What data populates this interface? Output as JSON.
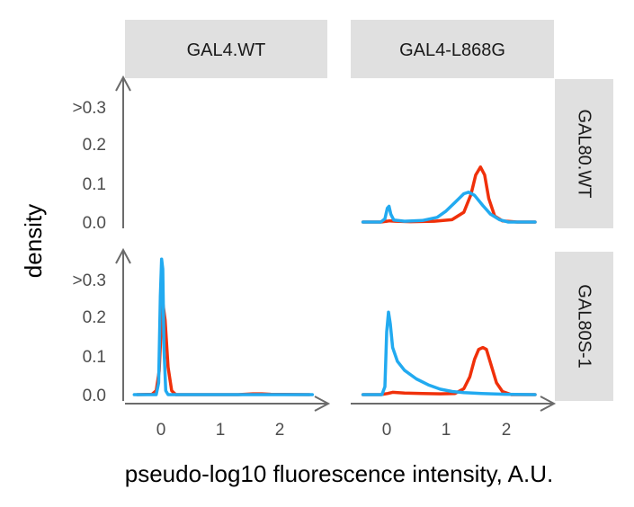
{
  "chart_data": {
    "type": "line",
    "subtype": "faceted density",
    "ylabel": "density",
    "xlabel": "pseudo-log10 fluorescence intensity, A.U.",
    "xlim": [
      -0.6,
      2.65
    ],
    "ylim": [
      0,
      0.35
    ],
    "x_ticks": [
      0,
      1,
      2
    ],
    "x_tick_labels": [
      "0",
      "1",
      "2"
    ],
    "y_ticks": [
      0,
      0.1,
      0.2,
      0.3
    ],
    "y_tick_labels": [
      "0.0",
      "0.1",
      "0.2",
      ">0.3"
    ],
    "col_facets": [
      "GAL4.WT",
      "GAL4-L868G"
    ],
    "row_facets": [
      "GAL80.WT",
      "GAL80S-1"
    ],
    "series_colors": [
      "#f0300a",
      "#22aaf0"
    ],
    "panels": [
      {
        "col": 0,
        "row": 0,
        "series": []
      },
      {
        "col": 1,
        "row": 0,
        "series": [
          {
            "color": "#f0300a",
            "points": [
              [
                -0.4,
                0.0
              ],
              [
                -0.1,
                0.0
              ],
              [
                0.0,
                0.002
              ],
              [
                0.05,
                0.003
              ],
              [
                0.15,
                0.002
              ],
              [
                0.4,
                0.001
              ],
              [
                0.8,
                0.002
              ],
              [
                1.1,
                0.006
              ],
              [
                1.3,
                0.025
              ],
              [
                1.42,
                0.07
              ],
              [
                1.5,
                0.12
              ],
              [
                1.58,
                0.14
              ],
              [
                1.65,
                0.12
              ],
              [
                1.72,
                0.06
              ],
              [
                1.82,
                0.015
              ],
              [
                1.95,
                0.003
              ],
              [
                2.2,
                0.0
              ],
              [
                2.5,
                0.0
              ]
            ]
          },
          {
            "color": "#22aaf0",
            "points": [
              [
                -0.4,
                0.0
              ],
              [
                -0.1,
                0.0
              ],
              [
                -0.03,
                0.008
              ],
              [
                0.01,
                0.035
              ],
              [
                0.04,
                0.04
              ],
              [
                0.07,
                0.02
              ],
              [
                0.12,
                0.005
              ],
              [
                0.3,
                0.002
              ],
              [
                0.6,
                0.004
              ],
              [
                0.85,
                0.012
              ],
              [
                1.0,
                0.028
              ],
              [
                1.15,
                0.05
              ],
              [
                1.3,
                0.072
              ],
              [
                1.38,
                0.076
              ],
              [
                1.48,
                0.068
              ],
              [
                1.62,
                0.042
              ],
              [
                1.75,
                0.02
              ],
              [
                1.9,
                0.006
              ],
              [
                2.05,
                0.0
              ],
              [
                2.5,
                0.0
              ]
            ]
          }
        ]
      },
      {
        "col": 0,
        "row": 1,
        "series": [
          {
            "color": "#f0300a",
            "points": [
              [
                -0.4,
                0.0
              ],
              [
                -0.15,
                0.001
              ],
              [
                -0.08,
                0.01
              ],
              [
                -0.03,
                0.06
              ],
              [
                0.0,
                0.16
              ],
              [
                0.03,
                0.235
              ],
              [
                0.07,
                0.19
              ],
              [
                0.12,
                0.07
              ],
              [
                0.18,
                0.01
              ],
              [
                0.25,
                0.0
              ],
              [
                0.8,
                0.0
              ],
              [
                1.3,
                0.0
              ],
              [
                1.55,
                0.002
              ],
              [
                1.7,
                0.002
              ],
              [
                1.85,
                0.001
              ],
              [
                2.5,
                0.0
              ]
            ]
          },
          {
            "color": "#22aaf0",
            "points": [
              [
                -0.45,
                0.0
              ],
              [
                -0.08,
                0.0
              ],
              [
                -0.04,
                0.03
              ],
              [
                -0.01,
                0.25
              ],
              [
                0.01,
                0.345
              ],
              [
                0.03,
                0.32
              ],
              [
                0.05,
                0.12
              ],
              [
                0.08,
                0.01
              ],
              [
                0.12,
                0.0
              ],
              [
                2.55,
                0.0
              ]
            ]
          }
        ]
      },
      {
        "col": 1,
        "row": 1,
        "series": [
          {
            "color": "#f0300a",
            "points": [
              [
                -0.4,
                0.0
              ],
              [
                -0.1,
                0.0
              ],
              [
                0.02,
                0.003
              ],
              [
                0.1,
                0.006
              ],
              [
                0.3,
                0.004
              ],
              [
                0.6,
                0.003
              ],
              [
                0.9,
                0.002
              ],
              [
                1.15,
                0.003
              ],
              [
                1.3,
                0.015
              ],
              [
                1.4,
                0.045
              ],
              [
                1.48,
                0.09
              ],
              [
                1.55,
                0.115
              ],
              [
                1.62,
                0.12
              ],
              [
                1.68,
                0.115
              ],
              [
                1.75,
                0.08
              ],
              [
                1.85,
                0.03
              ],
              [
                1.95,
                0.008
              ],
              [
                2.1,
                0.0
              ],
              [
                2.5,
                0.0
              ]
            ]
          },
          {
            "color": "#22aaf0",
            "points": [
              [
                -0.4,
                0.0
              ],
              [
                -0.08,
                0.0
              ],
              [
                -0.03,
                0.02
              ],
              [
                0.0,
                0.16
              ],
              [
                0.03,
                0.21
              ],
              [
                0.06,
                0.18
              ],
              [
                0.1,
                0.12
              ],
              [
                0.18,
                0.085
              ],
              [
                0.3,
                0.062
              ],
              [
                0.5,
                0.04
              ],
              [
                0.7,
                0.025
              ],
              [
                0.9,
                0.014
              ],
              [
                1.1,
                0.008
              ],
              [
                1.3,
                0.005
              ],
              [
                1.6,
                0.003
              ],
              [
                2.0,
                0.001
              ],
              [
                2.5,
                0.0
              ]
            ]
          }
        ]
      }
    ]
  }
}
